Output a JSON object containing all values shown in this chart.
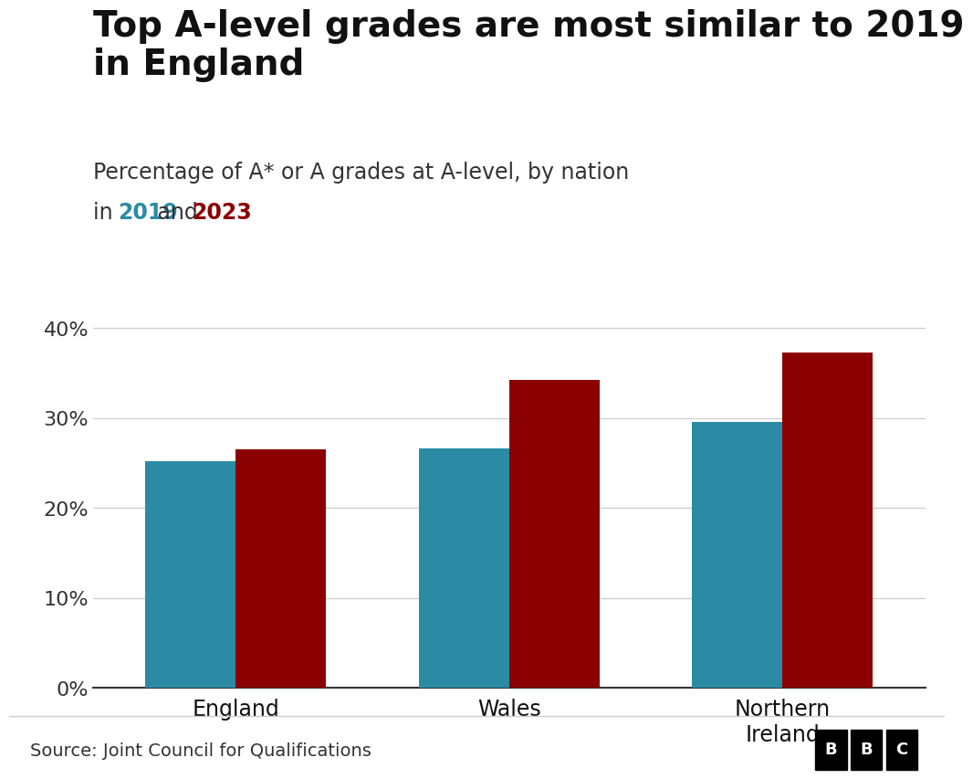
{
  "title": "Top A-level grades are most similar to 2019\nin England",
  "subtitle_line1": "Percentage of A* or A grades at A-level, by nation",
  "subtitle_line2_prefix": "in ",
  "subtitle_2019": "2019",
  "subtitle_mid": " and ",
  "subtitle_2023": "2023",
  "nations": [
    "England",
    "Wales",
    "Northern\nIreland"
  ],
  "values_2019": [
    25.2,
    26.6,
    29.6
  ],
  "values_2023": [
    26.5,
    34.2,
    37.3
  ],
  "color_2019": "#2B8BA5",
  "color_2023": "#8B0000",
  "color_2019_text": "#2B8BA5",
  "color_2023_text": "#8B0000",
  "ylim": [
    0,
    42
  ],
  "yticks": [
    0,
    10,
    20,
    30,
    40
  ],
  "ytick_labels": [
    "0%",
    "10%",
    "20%",
    "30%",
    "40%"
  ],
  "source_text": "Source: Joint Council for Qualifications",
  "background_color": "#ffffff",
  "bar_width": 0.38,
  "title_fontsize": 28,
  "subtitle_fontsize": 17,
  "tick_fontsize": 16,
  "source_fontsize": 14,
  "footer_line_color": "#cccccc",
  "grid_color": "#cccccc",
  "bottom_spine_color": "#333333"
}
